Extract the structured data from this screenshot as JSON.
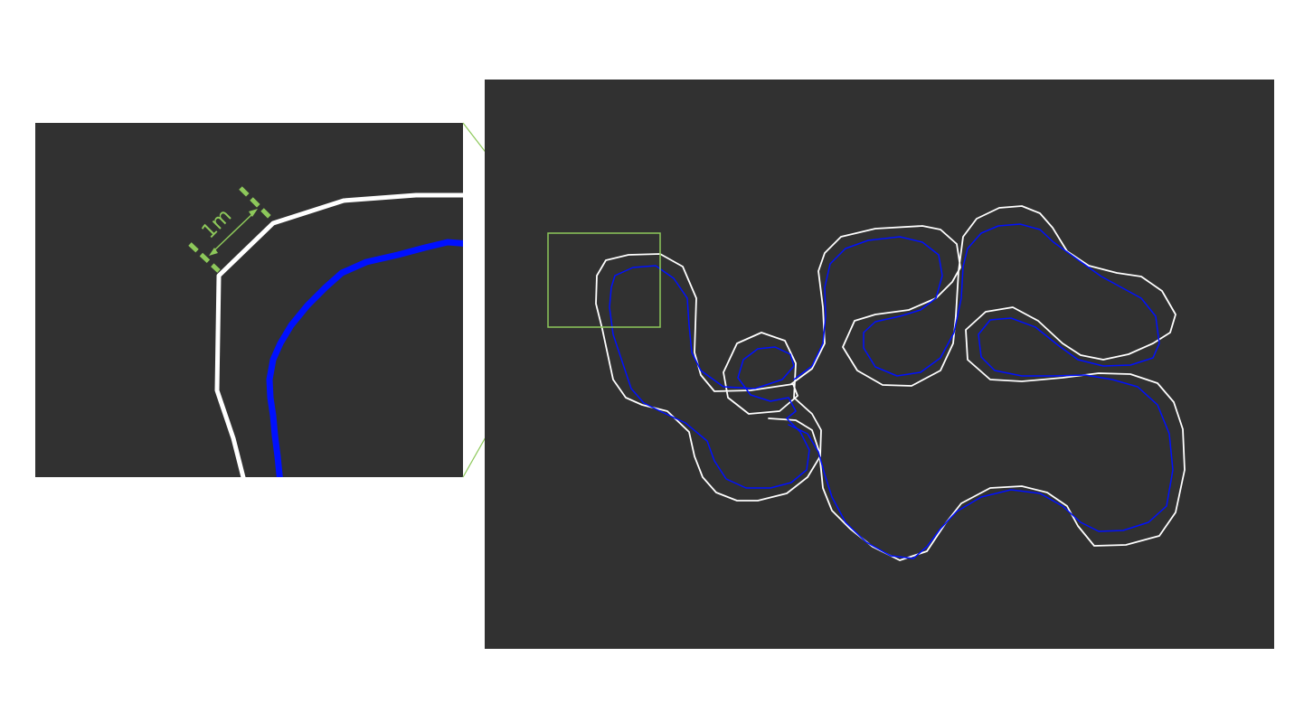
{
  "figure": {
    "scale_label": "1m"
  },
  "colors": {
    "panel_background": "#313131",
    "page_background": "#ffffff",
    "boundary": "#ffffff",
    "trajectory": "#0010ff",
    "accent": "#8dc85a"
  }
}
